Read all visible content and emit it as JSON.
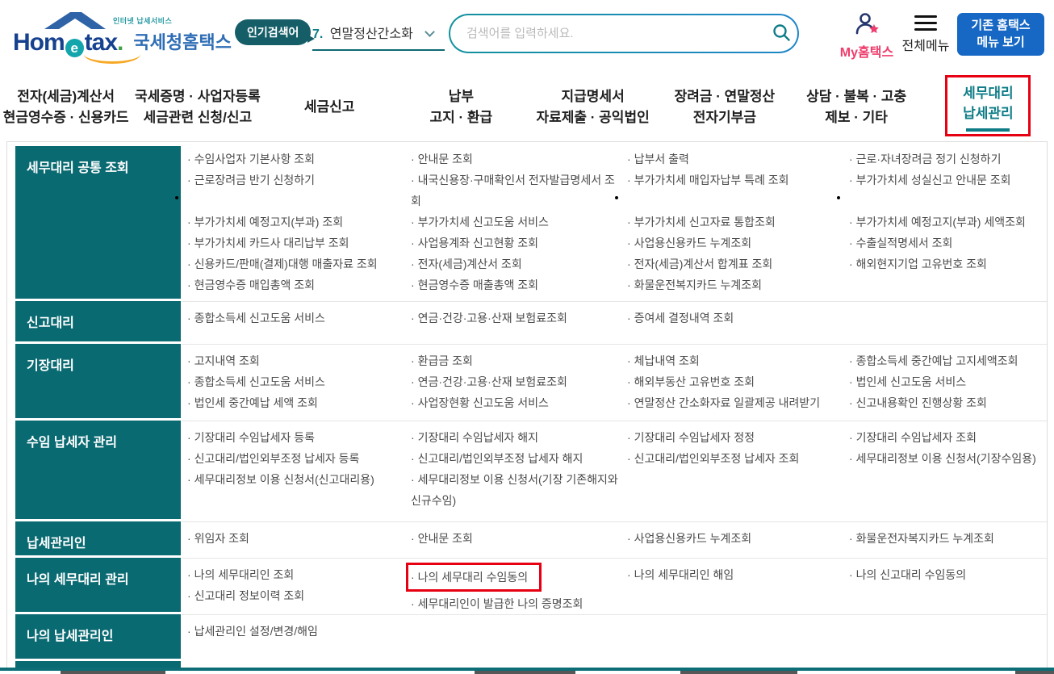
{
  "header": {
    "logo": {
      "tagline": "인터넷 납세서비스",
      "brand_prefix": "Hom",
      "brand_e": "e",
      "brand_suffix": "tax",
      "brand_dot": ".",
      "site_name": "국세청홈택스"
    },
    "popular_search": {
      "badge": "인기검색어",
      "rank": "7.",
      "term": "연말정산간소화"
    },
    "search": {
      "placeholder": "검색어를 입력하세요."
    },
    "my_hometax_label": "My홈택스",
    "all_menu_label": "전체메뉴",
    "legacy_button": {
      "line1": "기존 홈택스",
      "line2": "메뉴 보기"
    }
  },
  "nav": {
    "tabs": [
      {
        "lines": [
          "전자(세금)계산서",
          "현금영수증 · 신용카드"
        ],
        "active": false
      },
      {
        "lines": [
          "국세증명 · 사업자등록",
          "세금관련 신청/신고"
        ],
        "active": false
      },
      {
        "lines": [
          "세금신고"
        ],
        "active": false
      },
      {
        "lines": [
          "납부",
          "고지 · 환급"
        ],
        "active": false
      },
      {
        "lines": [
          "지급명세서",
          "자료제출 · 공익법인"
        ],
        "active": false
      },
      {
        "lines": [
          "장려금 · 연말정산",
          "전자기부금"
        ],
        "active": false
      },
      {
        "lines": [
          "상담 · 불복 · 고충",
          "제보 · 기타"
        ],
        "active": false
      },
      {
        "lines": [
          "세무대리",
          "납세관리"
        ],
        "active": true,
        "highlighted": true
      }
    ]
  },
  "mega_menu": {
    "rows": [
      {
        "category": "세무대리 공통 조회",
        "cols": [
          [
            "수임사업자 기본사항 조회",
            "근로장려금 반기 신청하기",
            null,
            "부가가치세 예정고지(부과) 조회",
            "부가가치세 카드사 대리납부 조회",
            "신용카드/판매(결제)대행 매출자료 조회",
            "현금영수증 매입총액 조회"
          ],
          [
            "안내문 조회",
            "내국신용장·구매확인서 전자발급명세서 조회",
            "부가가치세 신고도움 서비스",
            "사업용계좌 신고현황 조회",
            "전자(세금)계산서 조회",
            "현금영수증 매출총액 조회"
          ],
          [
            "납부서 출력",
            "부가가치세 매입자납부 특례 조회",
            null,
            "부가가치세 신고자료 통합조회",
            "사업용신용카드 누계조회",
            "전자(세금)계산서 합계표 조회",
            "화물운전복지카드 누계조회"
          ],
          [
            "근로·자녀장려금 정기 신청하기",
            "부가가치세 성실신고 안내문 조회",
            null,
            "부가가치세 예정고지(부과) 세액조회",
            "수출실적명세서 조회",
            "해외현지기업 고유번호 조회"
          ]
        ]
      },
      {
        "category": "신고대리",
        "cols": [
          [
            "종합소득세 신고도움 서비스"
          ],
          [
            "연금·건강·고용·산재 보험료조회"
          ],
          [
            "증여세 결정내역 조회"
          ],
          []
        ]
      },
      {
        "category": "기장대리",
        "cols": [
          [
            "고지내역 조회",
            "종합소득세 신고도움 서비스",
            "법인세 중간예납 세액 조회"
          ],
          [
            "환급금 조회",
            "연금·건강·고용·산재 보험료조회",
            "사업장현황 신고도움 서비스"
          ],
          [
            "체납내역 조회",
            "해외부동산 고유번호 조회",
            "연말정산 간소화자료 일괄제공 내려받기"
          ],
          [
            "종합소득세 중간예납 고지세액조회",
            "법인세 신고도움 서비스",
            "신고내용확인 진행상황 조회"
          ]
        ]
      },
      {
        "category": "수임 납세자 관리",
        "cols": [
          [
            "기장대리 수임납세자 등록",
            "신고대리/법인외부조정 납세자 등록",
            "세무대리정보 이용 신청서(신고대리용)"
          ],
          [
            "기장대리 수임납세자 해지",
            "신고대리/법인외부조정 납세자 해지",
            "세무대리정보 이용 신청서(기장 기존해지와 신규수임)"
          ],
          [
            "기장대리 수임납세자 정정",
            "신고대리/법인외부조정 납세자 조회"
          ],
          [
            "기장대리 수임납세자 조회",
            "세무대리정보 이용 신청서(기장수임용)"
          ]
        ]
      },
      {
        "category": "납세관리인",
        "cols": [
          [
            "위임자 조회"
          ],
          [
            "안내문 조회"
          ],
          [
            "사업용신용카드 누계조회"
          ],
          [
            "화물운전자복지카드 누계조회"
          ]
        ]
      },
      {
        "category": "나의 세무대리 관리",
        "cols": [
          [
            "나의 세무대리인 조회",
            "신고대리 정보이력 조회"
          ],
          [
            {
              "text": "나의 세무대리 수임동의",
              "highlight": true
            },
            "세무대리인이 발급한 나의 증명조회"
          ],
          [
            "나의 세무대리인 해임"
          ],
          [
            "나의 신고대리 수임동의"
          ]
        ]
      },
      {
        "category": "나의 납세관리인",
        "cols": [
          [
            "납세관리인 설정/변경/해임"
          ],
          [],
          [],
          []
        ]
      }
    ]
  },
  "colors": {
    "sidebar_teal": "#0a6a72",
    "active_nav_teal": "#0e7c87",
    "highlight_red": "#e60012",
    "legacy_button_blue": "#1668c4",
    "my_hometax_pink": "#ee3e6d",
    "brand_blue": "#16418f"
  }
}
